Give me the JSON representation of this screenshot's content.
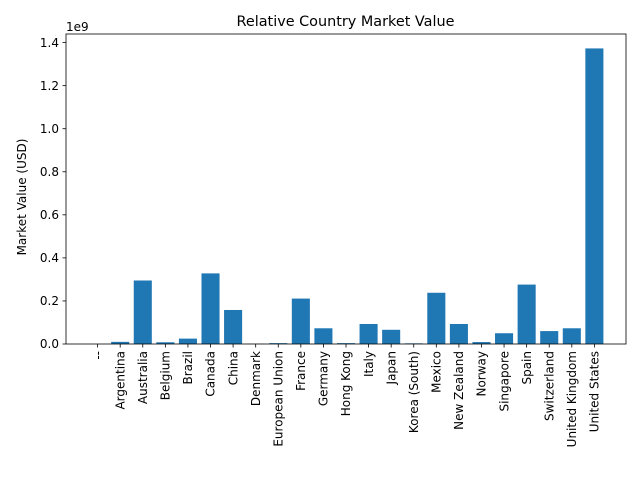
{
  "chart_data": {
    "type": "bar",
    "title": "Relative Country Market Value",
    "xlabel": "",
    "ylabel": "Market Value (USD)",
    "y_scale_label": "1e9",
    "ylim": [
      0,
      1.44
    ],
    "y_unit_multiplier": 1000000000.0,
    "yticks": [
      0.0,
      0.2,
      0.4,
      0.6,
      0.8,
      1.0,
      1.2,
      1.4
    ],
    "ytick_labels": [
      "0.0",
      "0.2",
      "0.4",
      "0.6",
      "0.8",
      "1.0",
      "1.2",
      "1.4"
    ],
    "grid": false,
    "bar_color": "#1f77b4",
    "categories": [
      "--",
      "Argentina",
      "Australia",
      "Belgium",
      "Brazil",
      "Canada",
      "China",
      "Denmark",
      "European Union",
      "France",
      "Germany",
      "Hong Kong",
      "Italy",
      "Japan",
      "Korea (South)",
      "Mexico",
      "New Zealand",
      "Norway",
      "Singapore",
      "Spain",
      "Switzerland",
      "United Kingdom",
      "United States"
    ],
    "values": [
      0.0,
      0.01,
      0.295,
      0.008,
      0.025,
      0.328,
      0.158,
      0.001,
      0.004,
      0.211,
      0.073,
      0.004,
      0.093,
      0.066,
      0.003,
      0.238,
      0.093,
      0.009,
      0.05,
      0.276,
      0.06,
      0.073,
      1.373
    ]
  }
}
